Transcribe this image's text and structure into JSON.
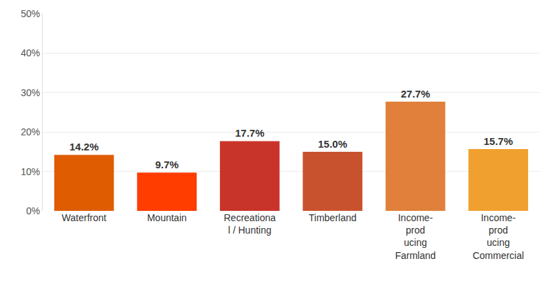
{
  "chart_data": {
    "type": "bar",
    "categories": [
      "Waterfront",
      "Mountain",
      "Recreationa\nl / Hunting",
      "Timberland",
      "Income-\nprod\nucing\nFarmland",
      "Income-\nprod\nucing\nCommercial"
    ],
    "values": [
      14.2,
      9.7,
      17.7,
      15.0,
      27.7,
      15.7
    ],
    "value_labels": [
      "14.2%",
      "9.7%",
      "17.7%",
      "15.0%",
      "27.7%",
      "15.7%"
    ],
    "colors": [
      "#e05c00",
      "#ff3d00",
      "#c9342a",
      "#c9522e",
      "#e0803a",
      "#f0a02e"
    ],
    "data_labels": true,
    "ylim": [
      0,
      50
    ],
    "yticks": [
      {
        "value": 0,
        "label": "0%"
      },
      {
        "value": 10,
        "label": "10%"
      },
      {
        "value": 20,
        "label": "20%"
      },
      {
        "value": 30,
        "label": "30%"
      },
      {
        "value": 40,
        "label": "40%"
      },
      {
        "value": 50,
        "label": "50%"
      }
    ],
    "grid": true
  }
}
